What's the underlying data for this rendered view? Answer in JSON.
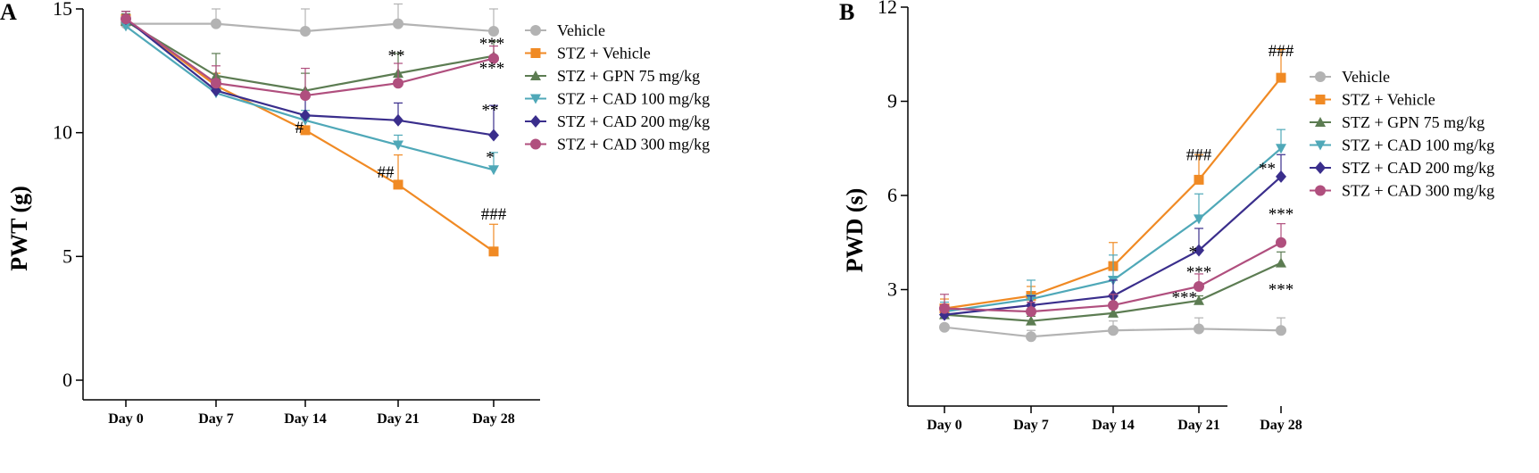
{
  "chart_data": [
    {
      "panel": "A",
      "type": "line",
      "ylabel": "PWT (g)",
      "xlabel": "",
      "categories": [
        "Day 0",
        "Day 7",
        "Day 14",
        "Day 21",
        "Day 28"
      ],
      "ylim": [
        0,
        15
      ],
      "yticks": [
        0,
        5,
        10,
        15
      ],
      "legend_position": "top-right",
      "series": [
        {
          "name": "Vehicle",
          "color": "#b3b3b3",
          "marker": "circle",
          "values": [
            14.4,
            14.4,
            14.1,
            14.4,
            14.1
          ],
          "errors": [
            0,
            0.6,
            0.9,
            0.8,
            0.9
          ]
        },
        {
          "name": "STZ + Vehicle",
          "color": "#f08a24",
          "marker": "square",
          "values": [
            14.6,
            11.9,
            10.1,
            7.9,
            5.2
          ],
          "errors": [
            0.3,
            0.5,
            0.5,
            1.2,
            1.1
          ]
        },
        {
          "name": "STZ + GPN 75 mg/kg",
          "color": "#5c7c52",
          "marker": "triangle-up",
          "values": [
            14.5,
            12.3,
            11.7,
            12.4,
            13.1
          ],
          "errors": [
            0.3,
            0.9,
            0.7,
            0.8,
            0.6
          ]
        },
        {
          "name": "STZ + CAD 100 mg/kg",
          "color": "#4fa8b8",
          "marker": "triangle-down",
          "values": [
            14.3,
            11.6,
            10.5,
            9.5,
            8.5
          ],
          "errors": [
            0.3,
            0.5,
            0.4,
            0.4,
            0.7
          ]
        },
        {
          "name": "STZ + CAD 200 mg/kg",
          "color": "#3a2e8c",
          "marker": "diamond",
          "values": [
            14.6,
            11.7,
            10.7,
            10.5,
            9.9
          ],
          "errors": [
            0.3,
            0.4,
            0.7,
            0.7,
            1.2
          ]
        },
        {
          "name": "STZ + CAD 300 mg/kg",
          "color": "#b04f7e",
          "marker": "circle",
          "values": [
            14.6,
            12.0,
            11.5,
            12.0,
            13.0
          ],
          "errors": [
            0.3,
            0.7,
            1.1,
            0.8,
            0.5
          ]
        }
      ],
      "annotations": [
        {
          "text": "#",
          "category": "Day 14",
          "y": 10.2,
          "anchor": "end",
          "dx": -2
        },
        {
          "text": "##",
          "category": "Day 21",
          "y": 8.4,
          "anchor": "middle",
          "dx": -14
        },
        {
          "text": "###",
          "category": "Day 28",
          "y": 6.7,
          "anchor": "middle",
          "dx": 0
        },
        {
          "text": "**",
          "category": "Day 21",
          "y": 13.1,
          "anchor": "middle",
          "dx": -2
        },
        {
          "text": "***",
          "category": "Day 28",
          "y": 13.6,
          "anchor": "middle",
          "dx": -2
        },
        {
          "text": "***",
          "category": "Day 28",
          "y": 12.6,
          "anchor": "middle",
          "dx": -2
        },
        {
          "text": "**",
          "category": "Day 28",
          "y": 10.9,
          "anchor": "middle",
          "dx": -4
        },
        {
          "text": "*",
          "category": "Day 28",
          "y": 9.0,
          "anchor": "middle",
          "dx": -4
        }
      ]
    },
    {
      "panel": "B",
      "type": "line",
      "ylabel": "PWD (s)",
      "xlabel": "",
      "categories": [
        "Day 0",
        "Day 7",
        "Day 14",
        "Day 21",
        "Day 28"
      ],
      "ylim": [
        0,
        12
      ],
      "yticks": [
        3,
        6,
        9,
        12
      ],
      "legend_position": "top-right",
      "series": [
        {
          "name": "Vehicle",
          "color": "#b3b3b3",
          "marker": "circle",
          "values": [
            1.8,
            1.5,
            1.7,
            1.75,
            1.7
          ],
          "errors": [
            0,
            0.2,
            0.3,
            0.35,
            0.4
          ]
        },
        {
          "name": "STZ + Vehicle",
          "color": "#f08a24",
          "marker": "square",
          "values": [
            2.4,
            2.8,
            3.75,
            6.5,
            9.75
          ],
          "errors": [
            0.3,
            0.3,
            0.75,
            0.8,
            0.9
          ]
        },
        {
          "name": "STZ + GPN 75 mg/kg",
          "color": "#5c7c52",
          "marker": "triangle-up",
          "values": [
            2.2,
            2.0,
            2.25,
            2.65,
            3.85
          ],
          "errors": [
            0.2,
            0.15,
            0.2,
            0.15,
            0.35
          ]
        },
        {
          "name": "STZ + CAD 100 mg/kg",
          "color": "#4fa8b8",
          "marker": "triangle-down",
          "values": [
            2.3,
            2.7,
            3.3,
            5.25,
            7.5
          ],
          "errors": [
            0.3,
            0.6,
            0.8,
            0.8,
            0.6
          ]
        },
        {
          "name": "STZ + CAD 200 mg/kg",
          "color": "#3a2e8c",
          "marker": "diamond",
          "values": [
            2.2,
            2.5,
            2.8,
            4.25,
            6.6
          ],
          "errors": [
            0.3,
            0.3,
            0.5,
            0.7,
            0.7
          ]
        },
        {
          "name": "STZ + CAD 300 mg/kg",
          "color": "#b04f7e",
          "marker": "circle",
          "values": [
            2.4,
            2.3,
            2.5,
            3.1,
            4.5
          ],
          "errors": [
            0.45,
            0.3,
            0.35,
            0.4,
            0.6
          ]
        }
      ],
      "annotations": [
        {
          "text": "###",
          "category": "Day 28",
          "y": 10.6,
          "anchor": "middle",
          "dx": 0
        },
        {
          "text": "###",
          "category": "Day 21",
          "y": 7.3,
          "anchor": "middle",
          "dx": 0
        },
        {
          "text": "**",
          "category": "Day 28",
          "y": 6.85,
          "anchor": "end",
          "dx": -6
        },
        {
          "text": "*",
          "category": "Day 21",
          "y": 4.2,
          "anchor": "end",
          "dx": -2
        },
        {
          "text": "***",
          "category": "Day 21",
          "y": 3.55,
          "anchor": "middle",
          "dx": 0
        },
        {
          "text": "***",
          "category": "Day 21",
          "y": 2.75,
          "anchor": "end",
          "dx": -2
        },
        {
          "text": "***",
          "category": "Day 28",
          "y": 5.4,
          "anchor": "middle",
          "dx": 0
        },
        {
          "text": "***",
          "category": "Day 28",
          "y": 3.0,
          "anchor": "middle",
          "dx": 0
        }
      ]
    }
  ]
}
